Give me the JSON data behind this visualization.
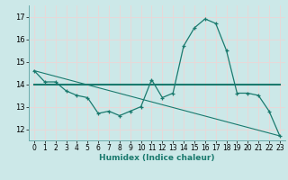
{
  "xlabel": "Humidex (Indice chaleur)",
  "x_ticks": [
    0,
    1,
    2,
    3,
    4,
    5,
    6,
    7,
    8,
    9,
    10,
    11,
    12,
    13,
    14,
    15,
    16,
    17,
    18,
    19,
    20,
    21,
    22,
    23
  ],
  "ylim": [
    11.5,
    17.5
  ],
  "xlim": [
    -0.5,
    23.5
  ],
  "yticks": [
    12,
    13,
    14,
    15,
    16,
    17
  ],
  "bg_color": "#cce8e8",
  "grid_color": "#e8d8d8",
  "line_color": "#1a7a6e",
  "series1_x": [
    0,
    1,
    2,
    3,
    4,
    5,
    6,
    7,
    8,
    9,
    10,
    11,
    12,
    13,
    14,
    15,
    16,
    17,
    18,
    19,
    20,
    21,
    22,
    23
  ],
  "series1_y": [
    14.6,
    14.1,
    14.1,
    13.7,
    13.5,
    13.4,
    12.7,
    12.8,
    12.6,
    12.8,
    13.0,
    14.2,
    13.4,
    13.6,
    15.7,
    16.5,
    16.9,
    16.7,
    15.5,
    13.6,
    13.6,
    13.5,
    12.8,
    11.7
  ],
  "series2_x": [
    0,
    17,
    23
  ],
  "series2_y": [
    14.0,
    14.0,
    14.0
  ],
  "series3_x": [
    0,
    23
  ],
  "series3_y": [
    14.6,
    11.7
  ]
}
